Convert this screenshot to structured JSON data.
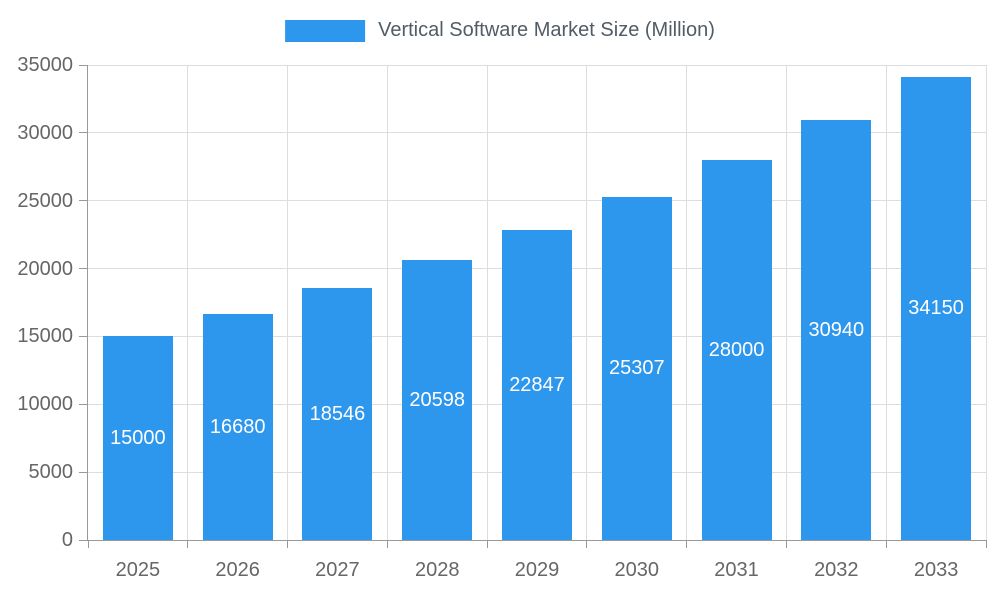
{
  "chart_data": {
    "type": "bar",
    "title": "Vertical Software Market Size (Million)",
    "categories": [
      "2025",
      "2026",
      "2027",
      "2028",
      "2029",
      "2030",
      "2031",
      "2032",
      "2033"
    ],
    "values": [
      15000,
      16680,
      18546,
      20598,
      22847,
      25307,
      28000,
      30940,
      34150
    ],
    "xlabel": "",
    "ylabel": "",
    "ylim": [
      0,
      35000
    ],
    "yticks": [
      0,
      5000,
      10000,
      15000,
      20000,
      25000,
      30000,
      35000
    ],
    "grid": true,
    "legend_position": "top-center",
    "value_labels": "inside-center-white",
    "colors": {
      "bar": "#2d96ed",
      "grid": "#dddddd",
      "axis": "#999999",
      "tick_text": "#666666",
      "title_text": "#525c66",
      "value_label": "#ffffff",
      "background": "#ffffff"
    }
  }
}
